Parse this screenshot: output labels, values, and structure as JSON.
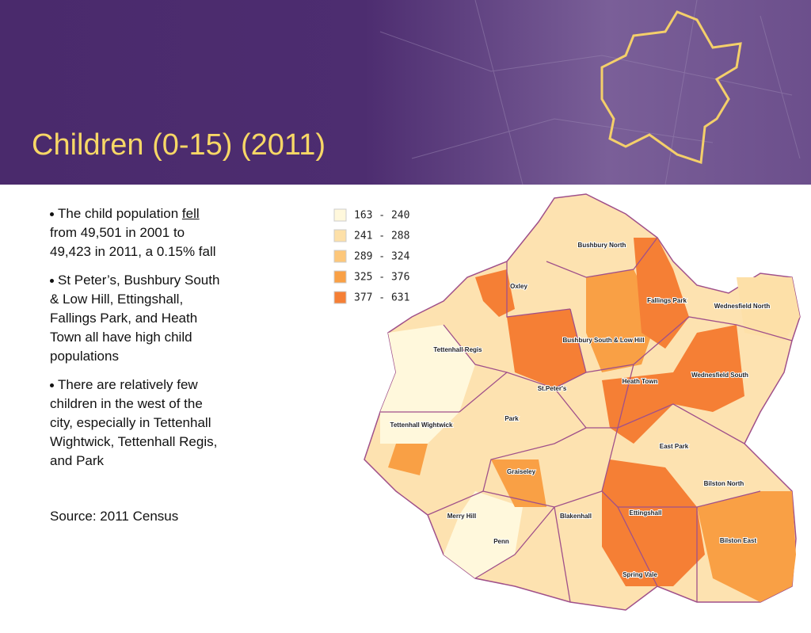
{
  "header": {
    "title": "Children (0-15) (2011)"
  },
  "bullets": [
    [
      "The child population ",
      "fell",
      " from 49,501 in 2001 to 49,423 in 2011, a 0.15% fall"
    ],
    [
      "St Peter’s, Bushbury South & Low Hill, Ettingshall, Fallings Park, and Heath Town all have high child populations"
    ],
    [
      "There are relatively few children in the west of the city, especially in Tettenhall Wightwick, Tettenhall Regis, and Park"
    ]
  ],
  "source": "Source: 2011 Census",
  "legend": [
    {
      "label": "163 - 240",
      "color": "#fff8dc"
    },
    {
      "label": "241 - 288",
      "color": "#fde0a8"
    },
    {
      "label": "289 - 324",
      "color": "#fdc77a"
    },
    {
      "label": "325 - 376",
      "color": "#f9a045"
    },
    {
      "label": "377 - 631",
      "color": "#f57f35"
    }
  ],
  "wards": [
    "Bushbury North",
    "Oxley",
    "Fallings Park",
    "Wednesfield North",
    "Tettenhall Regis",
    "Bushbury South & Low Hill",
    "St.Peter's",
    "Heath Town",
    "Wednesfield South",
    "Park",
    "Tettenhall Wightwick",
    "East Park",
    "Graiseley",
    "Bilston North",
    "Merry Hill",
    "Blakenhall",
    "Ettingshall",
    "Penn",
    "Bilston East",
    "Spring Vale"
  ]
}
